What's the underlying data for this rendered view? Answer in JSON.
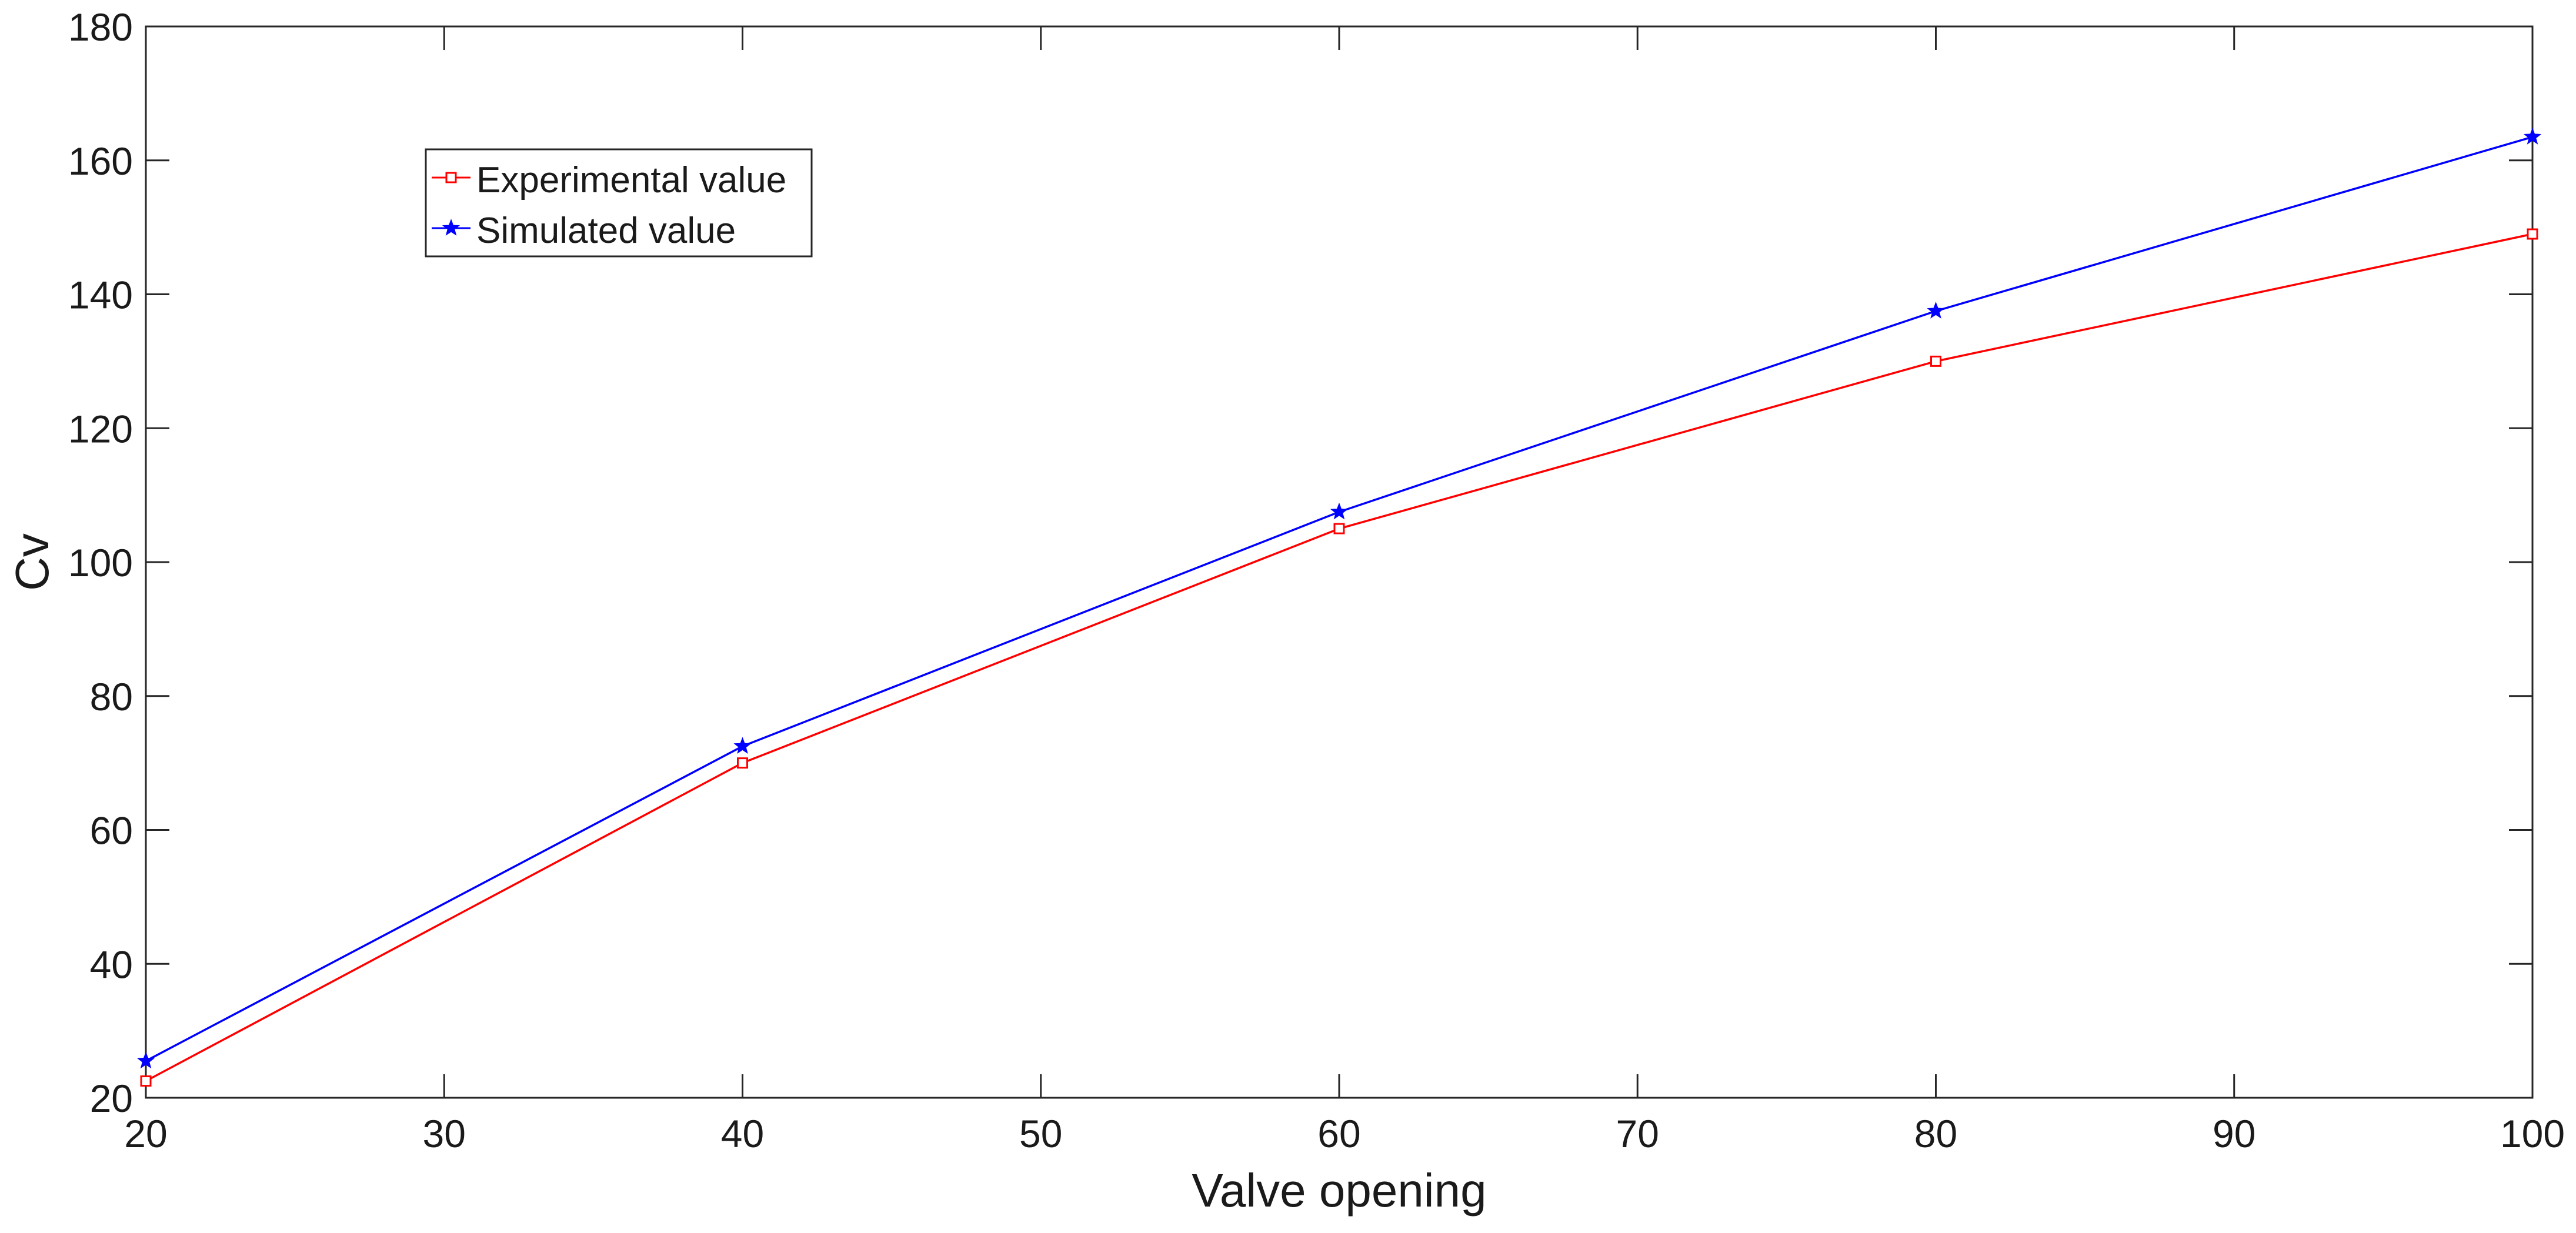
{
  "chart_data": {
    "type": "line",
    "title": "",
    "xlabel": "Valve opening",
    "ylabel": "Cv",
    "xlim": [
      20,
      100
    ],
    "ylim": [
      20,
      180
    ],
    "xticks": [
      20,
      30,
      40,
      50,
      60,
      70,
      80,
      90,
      100
    ],
    "yticks": [
      20,
      40,
      60,
      80,
      100,
      120,
      140,
      160,
      180
    ],
    "grid": false,
    "legend_position": "upper-left",
    "x": [
      20,
      40,
      60,
      80,
      100
    ],
    "series": [
      {
        "name": "Experimental value",
        "color": "#ff0000",
        "marker": "square",
        "values": [
          22.5,
          70,
          105,
          130,
          149
        ]
      },
      {
        "name": "Simulated value",
        "color": "#0000ff",
        "marker": "star",
        "values": [
          25.5,
          72.5,
          107.5,
          137.5,
          163.5
        ]
      }
    ]
  }
}
